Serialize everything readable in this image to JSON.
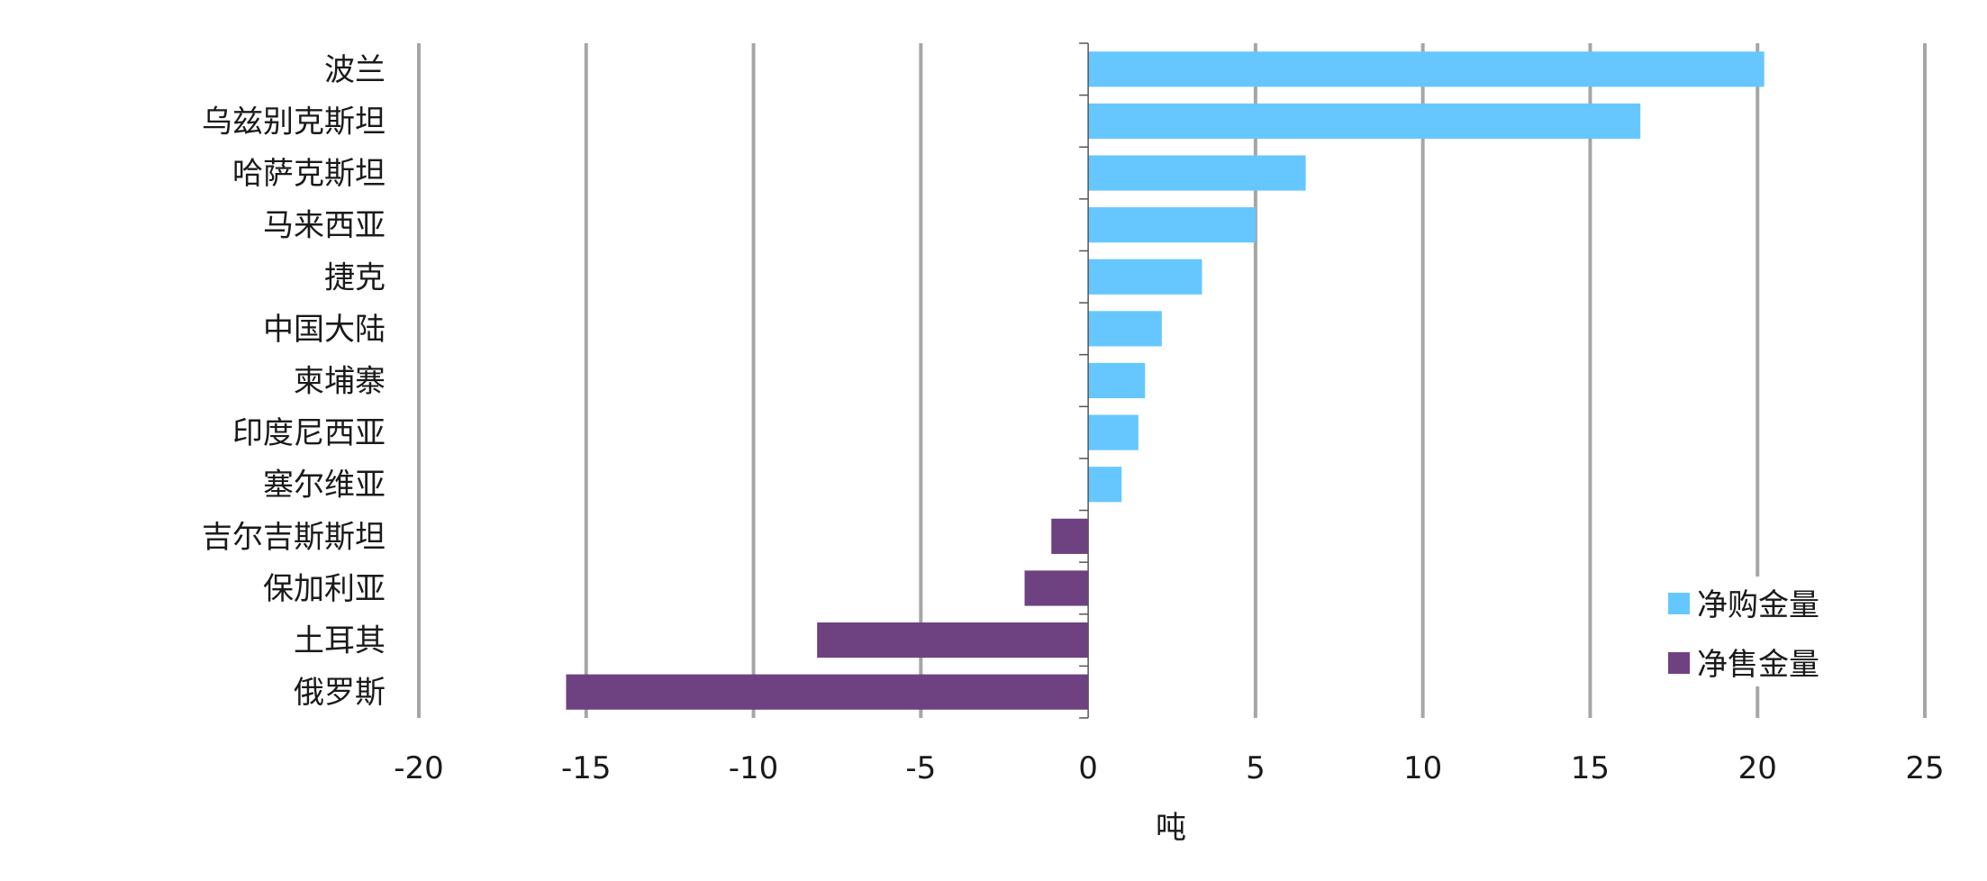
{
  "chart_data": {
    "type": "bar",
    "orientation": "horizontal",
    "title": "",
    "xlabel": "吨",
    "ylabel": "",
    "xlim": [
      -20,
      25
    ],
    "x_ticks": [
      -20,
      -15,
      -10,
      -5,
      0,
      5,
      10,
      15,
      20,
      25
    ],
    "grid": true,
    "categories": [
      "波兰",
      "乌兹别克斯坦",
      "哈萨克斯坦",
      "马来西亚",
      "捷克",
      "中国大陆",
      "柬埔寨",
      "印度尼西亚",
      "塞尔维亚",
      "吉尔吉斯斯坦",
      "保加利亚",
      "土耳其",
      "俄罗斯"
    ],
    "values": [
      20.2,
      16.5,
      6.5,
      5.0,
      3.4,
      2.2,
      1.7,
      1.5,
      1.0,
      -1.1,
      -1.9,
      -8.1,
      -15.6
    ],
    "series": [
      {
        "name": "净购金量",
        "color": "#66C7FF"
      },
      {
        "name": "净售金量",
        "color": "#6E4181"
      }
    ],
    "legend_position": "lower-right"
  }
}
